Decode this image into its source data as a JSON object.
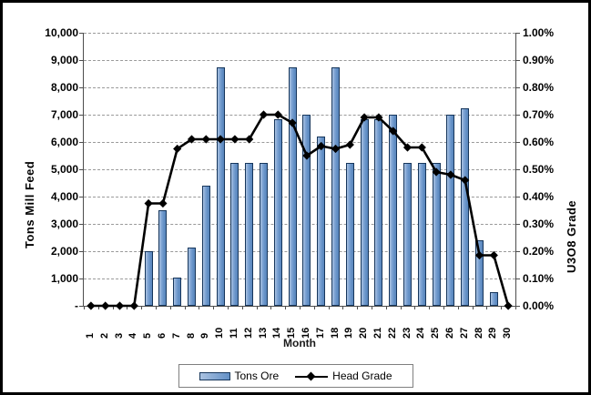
{
  "figure": {
    "x_axis_title": "Month",
    "left_axis_title": "Tons Mill Feed",
    "right_axis_title": "U3O8 Grade",
    "left_ticks": [
      "10,000",
      "9,000",
      "8,000",
      "7,000",
      "6,000",
      "5,000",
      "4,000",
      "3,000",
      "2,000",
      "1,000",
      "-"
    ],
    "right_ticks": [
      "1.00%",
      "0.90%",
      "0.80%",
      "0.70%",
      "0.60%",
      "0.50%",
      "0.40%",
      "0.30%",
      "0.20%",
      "0.10%",
      "0.00%"
    ],
    "legend": {
      "bar_label": "Tons Ore",
      "line_label": "Head Grade"
    }
  },
  "chart_data": {
    "type": "bar+line",
    "title": "",
    "xlabel": "Month",
    "ylabel_left": "Tons Mill Feed",
    "ylabel_right": "U3O8 Grade",
    "ylim_left": [
      0,
      10000
    ],
    "ylim_right_percent": [
      0.0,
      1.0
    ],
    "grid": true,
    "legend_position": "bottom",
    "x": [
      1,
      2,
      3,
      4,
      5,
      6,
      7,
      8,
      9,
      10,
      11,
      12,
      13,
      14,
      15,
      16,
      17,
      18,
      19,
      20,
      21,
      22,
      23,
      24,
      25,
      26,
      27,
      28,
      29,
      30
    ],
    "series": [
      {
        "name": "Tons Ore",
        "type": "bar",
        "axis": "left",
        "values": [
          0,
          0,
          0,
          0,
          2000,
          3500,
          1050,
          2150,
          4400,
          8750,
          5250,
          5250,
          5250,
          6850,
          8750,
          7000,
          6200,
          8750,
          5250,
          6850,
          6850,
          7000,
          5250,
          5250,
          5250,
          7000,
          7250,
          2400,
          500,
          0
        ]
      },
      {
        "name": "Head Grade",
        "type": "line",
        "axis": "right",
        "unit": "%",
        "values": [
          0,
          0,
          0,
          0,
          0.375,
          0.375,
          0.575,
          0.61,
          0.61,
          0.61,
          0.61,
          0.61,
          0.7,
          0.7,
          0.67,
          0.55,
          0.585,
          0.575,
          0.59,
          0.69,
          0.69,
          0.64,
          0.58,
          0.58,
          0.49,
          0.48,
          0.46,
          0.185,
          0.185,
          0
        ]
      }
    ]
  },
  "colors": {
    "bar_fill": "#6390c6",
    "bar_highlight": "#aac2e1",
    "bar_border": "#16365c",
    "line": "#000000",
    "grid": "#9a9a9a",
    "axis": "#4d4d4d",
    "frame": "#000000"
  }
}
